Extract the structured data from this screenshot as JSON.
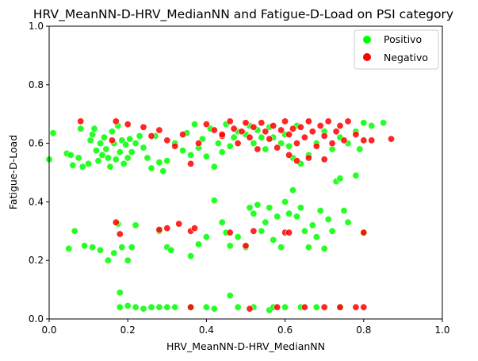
{
  "chart_data": {
    "type": "scatter",
    "title": "HRV_MeanNN-D-HRV_MedianNN and Fatigue-D-Load on PSI category",
    "xlabel": "HRV_MeanNN-D-HRV_MedianNN",
    "ylabel": "Fatigue-D-Load",
    "xlim": [
      0,
      1
    ],
    "ylim": [
      0,
      1
    ],
    "xticks": [
      "0.0",
      "0.2",
      "0.4",
      "0.6",
      "0.8",
      "1.0"
    ],
    "yticks": [
      "0.0",
      "0.2",
      "0.4",
      "0.6",
      "0.8",
      "1.0"
    ],
    "grid": false,
    "legend_position": "top-right",
    "series": [
      {
        "name": "Positivo",
        "color": "#00ff00",
        "points": [
          [
            0.0,
            0.545
          ],
          [
            0.01,
            0.635
          ],
          [
            0.045,
            0.565
          ],
          [
            0.055,
            0.56
          ],
          [
            0.06,
            0.525
          ],
          [
            0.075,
            0.55
          ],
          [
            0.08,
            0.65
          ],
          [
            0.085,
            0.52
          ],
          [
            0.1,
            0.53
          ],
          [
            0.105,
            0.61
          ],
          [
            0.11,
            0.63
          ],
          [
            0.115,
            0.65
          ],
          [
            0.12,
            0.575
          ],
          [
            0.125,
            0.54
          ],
          [
            0.13,
            0.6
          ],
          [
            0.135,
            0.56
          ],
          [
            0.14,
            0.62
          ],
          [
            0.145,
            0.58
          ],
          [
            0.15,
            0.55
          ],
          [
            0.155,
            0.52
          ],
          [
            0.16,
            0.64
          ],
          [
            0.165,
            0.6
          ],
          [
            0.17,
            0.545
          ],
          [
            0.175,
            0.66
          ],
          [
            0.18,
            0.57
          ],
          [
            0.185,
            0.61
          ],
          [
            0.19,
            0.53
          ],
          [
            0.195,
            0.595
          ],
          [
            0.2,
            0.55
          ],
          [
            0.205,
            0.615
          ],
          [
            0.21,
            0.57
          ],
          [
            0.22,
            0.6
          ],
          [
            0.23,
            0.625
          ],
          [
            0.24,
            0.585
          ],
          [
            0.25,
            0.55
          ],
          [
            0.26,
            0.515
          ],
          [
            0.27,
            0.625
          ],
          [
            0.28,
            0.535
          ],
          [
            0.29,
            0.505
          ],
          [
            0.3,
            0.54
          ],
          [
            0.32,
            0.6
          ],
          [
            0.34,
            0.575
          ],
          [
            0.36,
            0.56
          ],
          [
            0.38,
            0.585
          ],
          [
            0.4,
            0.555
          ],
          [
            0.42,
            0.52
          ],
          [
            0.44,
            0.57
          ],
          [
            0.46,
            0.59
          ],
          [
            0.47,
            0.62
          ],
          [
            0.5,
            0.63
          ],
          [
            0.52,
            0.6
          ],
          [
            0.53,
            0.645
          ],
          [
            0.55,
            0.58
          ],
          [
            0.57,
            0.62
          ],
          [
            0.59,
            0.6
          ],
          [
            0.6,
            0.63
          ],
          [
            0.61,
            0.59
          ],
          [
            0.62,
            0.55
          ],
          [
            0.63,
            0.66
          ],
          [
            0.64,
            0.53
          ],
          [
            0.66,
            0.56
          ],
          [
            0.68,
            0.6
          ],
          [
            0.7,
            0.64
          ],
          [
            0.72,
            0.58
          ],
          [
            0.74,
            0.62
          ],
          [
            0.76,
            0.6
          ],
          [
            0.78,
            0.64
          ],
          [
            0.79,
            0.58
          ],
          [
            0.8,
            0.67
          ],
          [
            0.82,
            0.66
          ],
          [
            0.85,
            0.67
          ],
          [
            0.35,
            0.635
          ],
          [
            0.37,
            0.665
          ],
          [
            0.39,
            0.615
          ],
          [
            0.41,
            0.65
          ],
          [
            0.43,
            0.6
          ],
          [
            0.45,
            0.665
          ],
          [
            0.48,
            0.64
          ],
          [
            0.51,
            0.66
          ],
          [
            0.54,
            0.62
          ],
          [
            0.56,
            0.655
          ],
          [
            0.36,
            0.215
          ],
          [
            0.38,
            0.255
          ],
          [
            0.4,
            0.28
          ],
          [
            0.42,
            0.405
          ],
          [
            0.44,
            0.33
          ],
          [
            0.45,
            0.295
          ],
          [
            0.46,
            0.25
          ],
          [
            0.48,
            0.28
          ],
          [
            0.5,
            0.245
          ],
          [
            0.51,
            0.38
          ],
          [
            0.52,
            0.36
          ],
          [
            0.53,
            0.39
          ],
          [
            0.54,
            0.3
          ],
          [
            0.55,
            0.33
          ],
          [
            0.56,
            0.38
          ],
          [
            0.57,
            0.27
          ],
          [
            0.58,
            0.35
          ],
          [
            0.59,
            0.245
          ],
          [
            0.6,
            0.4
          ],
          [
            0.61,
            0.36
          ],
          [
            0.62,
            0.44
          ],
          [
            0.63,
            0.35
          ],
          [
            0.64,
            0.38
          ],
          [
            0.65,
            0.3
          ],
          [
            0.66,
            0.245
          ],
          [
            0.67,
            0.32
          ],
          [
            0.68,
            0.28
          ],
          [
            0.69,
            0.37
          ],
          [
            0.7,
            0.24
          ],
          [
            0.71,
            0.34
          ],
          [
            0.72,
            0.3
          ],
          [
            0.73,
            0.47
          ],
          [
            0.74,
            0.48
          ],
          [
            0.75,
            0.37
          ],
          [
            0.76,
            0.33
          ],
          [
            0.78,
            0.49
          ],
          [
            0.8,
            0.295
          ],
          [
            0.05,
            0.24
          ],
          [
            0.065,
            0.3
          ],
          [
            0.09,
            0.25
          ],
          [
            0.11,
            0.245
          ],
          [
            0.13,
            0.235
          ],
          [
            0.15,
            0.2
          ],
          [
            0.165,
            0.225
          ],
          [
            0.175,
            0.325
          ],
          [
            0.185,
            0.245
          ],
          [
            0.2,
            0.2
          ],
          [
            0.21,
            0.245
          ],
          [
            0.28,
            0.3
          ],
          [
            0.3,
            0.245
          ],
          [
            0.31,
            0.235
          ],
          [
            0.22,
            0.32
          ],
          [
            0.18,
            0.09
          ],
          [
            0.18,
            0.04
          ],
          [
            0.2,
            0.045
          ],
          [
            0.22,
            0.04
          ],
          [
            0.24,
            0.035
          ],
          [
            0.26,
            0.04
          ],
          [
            0.28,
            0.04
          ],
          [
            0.3,
            0.04
          ],
          [
            0.32,
            0.04
          ],
          [
            0.36,
            0.04
          ],
          [
            0.4,
            0.04
          ],
          [
            0.42,
            0.035
          ],
          [
            0.46,
            0.08
          ],
          [
            0.48,
            0.04
          ],
          [
            0.52,
            0.04
          ],
          [
            0.56,
            0.03
          ],
          [
            0.57,
            0.04
          ],
          [
            0.6,
            0.04
          ],
          [
            0.64,
            0.04
          ],
          [
            0.68,
            0.04
          ],
          [
            0.74,
            0.04
          ]
        ]
      },
      {
        "name": "Negativo",
        "color": "#ff0000",
        "points": [
          [
            0.08,
            0.675
          ],
          [
            0.16,
            0.61
          ],
          [
            0.17,
            0.675
          ],
          [
            0.2,
            0.665
          ],
          [
            0.24,
            0.655
          ],
          [
            0.26,
            0.625
          ],
          [
            0.28,
            0.645
          ],
          [
            0.3,
            0.61
          ],
          [
            0.32,
            0.59
          ],
          [
            0.34,
            0.63
          ],
          [
            0.36,
            0.53
          ],
          [
            0.38,
            0.6
          ],
          [
            0.4,
            0.665
          ],
          [
            0.42,
            0.645
          ],
          [
            0.44,
            0.625
          ],
          [
            0.46,
            0.675
          ],
          [
            0.47,
            0.65
          ],
          [
            0.48,
            0.6
          ],
          [
            0.49,
            0.64
          ],
          [
            0.5,
            0.67
          ],
          [
            0.51,
            0.62
          ],
          [
            0.52,
            0.655
          ],
          [
            0.53,
            0.58
          ],
          [
            0.54,
            0.67
          ],
          [
            0.55,
            0.64
          ],
          [
            0.56,
            0.615
          ],
          [
            0.57,
            0.66
          ],
          [
            0.58,
            0.585
          ],
          [
            0.59,
            0.645
          ],
          [
            0.6,
            0.675
          ],
          [
            0.61,
            0.63
          ],
          [
            0.62,
            0.65
          ],
          [
            0.63,
            0.6
          ],
          [
            0.64,
            0.655
          ],
          [
            0.65,
            0.62
          ],
          [
            0.66,
            0.675
          ],
          [
            0.67,
            0.64
          ],
          [
            0.68,
            0.59
          ],
          [
            0.69,
            0.66
          ],
          [
            0.7,
            0.625
          ],
          [
            0.71,
            0.675
          ],
          [
            0.72,
            0.6
          ],
          [
            0.73,
            0.64
          ],
          [
            0.74,
            0.66
          ],
          [
            0.75,
            0.61
          ],
          [
            0.76,
            0.675
          ],
          [
            0.78,
            0.63
          ],
          [
            0.8,
            0.61
          ],
          [
            0.82,
            0.61
          ],
          [
            0.87,
            0.615
          ],
          [
            0.61,
            0.56
          ],
          [
            0.63,
            0.54
          ],
          [
            0.66,
            0.55
          ],
          [
            0.7,
            0.545
          ],
          [
            0.44,
            0.63
          ],
          [
            0.17,
            0.33
          ],
          [
            0.18,
            0.29
          ],
          [
            0.28,
            0.305
          ],
          [
            0.3,
            0.31
          ],
          [
            0.33,
            0.325
          ],
          [
            0.36,
            0.3
          ],
          [
            0.37,
            0.31
          ],
          [
            0.46,
            0.295
          ],
          [
            0.5,
            0.25
          ],
          [
            0.52,
            0.3
          ],
          [
            0.6,
            0.295
          ],
          [
            0.61,
            0.295
          ],
          [
            0.8,
            0.295
          ],
          [
            0.36,
            0.04
          ],
          [
            0.51,
            0.035
          ],
          [
            0.58,
            0.04
          ],
          [
            0.65,
            0.04
          ],
          [
            0.7,
            0.04
          ],
          [
            0.74,
            0.04
          ],
          [
            0.78,
            0.04
          ],
          [
            0.8,
            0.04
          ]
        ]
      }
    ]
  }
}
